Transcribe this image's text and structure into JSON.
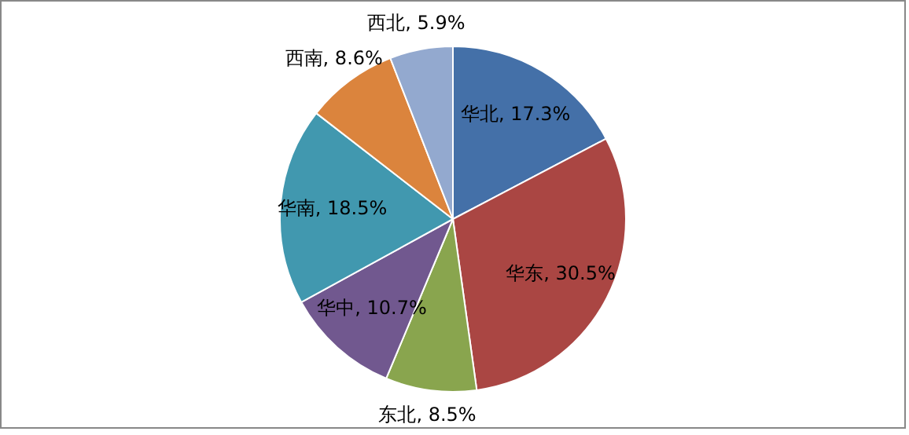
{
  "chart_data": {
    "type": "pie",
    "categories": [
      "华北",
      "华东",
      "东北",
      "华中",
      "华南",
      "西南",
      "西北"
    ],
    "values": [
      17.3,
      30.5,
      8.5,
      10.7,
      18.5,
      8.6,
      5.9
    ],
    "colors": [
      "#4470a8",
      "#aa4643",
      "#89a54e",
      "#71588f",
      "#4198af",
      "#db843d",
      "#93a9cf"
    ],
    "value_labels": [
      ", 17.3%",
      ", 30.5%",
      ", 8.5%",
      ", 10.7%",
      ", 18.5%",
      ", 8.6%",
      ", 5.9%"
    ],
    "legend": false
  }
}
